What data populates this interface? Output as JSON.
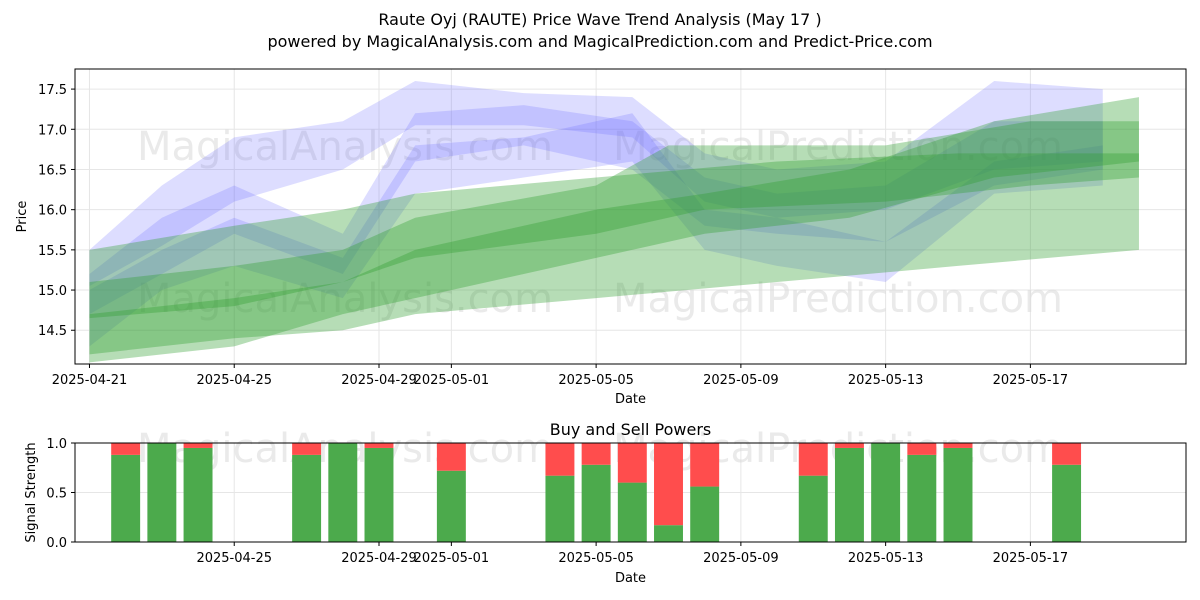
{
  "page": {
    "title_line1": "Raute Oyj (RAUTE) Price Wave Trend Analysis (May 17 )",
    "title_line2": "powered by MagicalAnalysis.com and MagicalPrediction.com and Predict-Price.com",
    "watermarks": [
      "MagicalAnalysis.com",
      "MagicalPrediction.com"
    ]
  },
  "colors": {
    "blue_band": "#6666ff",
    "green_band": "#2e9e2e",
    "buy": "#4caa4c",
    "sell": "#ff4d4d",
    "grid": "#e6e6e6"
  },
  "chart_data": [
    {
      "type": "area",
      "title": "",
      "xlabel": "Date",
      "ylabel": "Price",
      "x_ticks": [
        "2025-04-21",
        "2025-04-25",
        "2025-04-29",
        "2025-05-01",
        "2025-05-05",
        "2025-05-09",
        "2025-05-13",
        "2025-05-17"
      ],
      "y_ticks": [
        14.5,
        15.0,
        15.5,
        16.0,
        16.5,
        17.0,
        17.5
      ],
      "xlim": [
        "2025-04-20.6",
        "2025-05-21.3"
      ],
      "ylim": [
        14.08,
        17.75
      ],
      "grid": true,
      "series": [
        {
          "group": "blue",
          "lower": [
            [
              "2025-04-21",
              15.05
            ],
            [
              "2025-04-23",
              15.55
            ],
            [
              "2025-04-25",
              16.1
            ],
            [
              "2025-04-28",
              16.5
            ],
            [
              "2025-04-30",
              17.05
            ],
            [
              "2025-05-03",
              17.05
            ],
            [
              "2025-05-06",
              16.9
            ],
            [
              "2025-05-08",
              16.1
            ],
            [
              "2025-05-10",
              15.9
            ],
            [
              "2025-05-13",
              16.0
            ],
            [
              "2025-05-16",
              16.5
            ],
            [
              "2025-05-19",
              16.6
            ]
          ],
          "upper": [
            [
              "2025-04-21",
              15.5
            ],
            [
              "2025-04-23",
              16.3
            ],
            [
              "2025-04-25",
              16.9
            ],
            [
              "2025-04-28",
              17.1
            ],
            [
              "2025-04-30",
              17.6
            ],
            [
              "2025-05-03",
              17.45
            ],
            [
              "2025-05-06",
              17.4
            ],
            [
              "2025-05-08",
              16.7
            ],
            [
              "2025-05-10",
              16.5
            ],
            [
              "2025-05-13",
              16.6
            ],
            [
              "2025-05-16",
              17.6
            ],
            [
              "2025-05-19",
              17.5
            ]
          ]
        },
        {
          "group": "blue",
          "lower": [
            [
              "2025-04-21",
              14.7
            ],
            [
              "2025-04-23",
              15.2
            ],
            [
              "2025-04-25",
              15.7
            ],
            [
              "2025-04-28",
              15.2
            ],
            [
              "2025-04-30",
              16.6
            ],
            [
              "2025-05-03",
              16.8
            ],
            [
              "2025-05-06",
              16.5
            ],
            [
              "2025-05-08",
              15.8
            ],
            [
              "2025-05-10",
              15.7
            ],
            [
              "2025-05-13",
              15.6
            ],
            [
              "2025-05-16",
              16.3
            ],
            [
              "2025-05-19",
              16.5
            ]
          ],
          "upper": [
            [
              "2025-04-21",
              15.2
            ],
            [
              "2025-04-23",
              15.9
            ],
            [
              "2025-04-25",
              16.3
            ],
            [
              "2025-04-28",
              15.7
            ],
            [
              "2025-04-30",
              17.2
            ],
            [
              "2025-05-03",
              17.3
            ],
            [
              "2025-05-06",
              17.1
            ],
            [
              "2025-05-08",
              16.4
            ],
            [
              "2025-05-10",
              16.2
            ],
            [
              "2025-05-13",
              16.3
            ],
            [
              "2025-05-16",
              17.1
            ],
            [
              "2025-05-19",
              17.1
            ]
          ]
        },
        {
          "group": "blue",
          "lower": [
            [
              "2025-04-21",
              14.3
            ],
            [
              "2025-04-23",
              15.0
            ],
            [
              "2025-04-25",
              15.3
            ],
            [
              "2025-04-28",
              14.9
            ],
            [
              "2025-04-30",
              16.2
            ],
            [
              "2025-05-03",
              16.4
            ],
            [
              "2025-05-06",
              16.6
            ],
            [
              "2025-05-08",
              15.5
            ],
            [
              "2025-05-10",
              15.3
            ],
            [
              "2025-05-13",
              15.1
            ],
            [
              "2025-05-16",
              16.2
            ],
            [
              "2025-05-19",
              16.3
            ]
          ],
          "upper": [
            [
              "2025-04-21",
              15.0
            ],
            [
              "2025-04-23",
              15.5
            ],
            [
              "2025-04-25",
              15.9
            ],
            [
              "2025-04-28",
              15.4
            ],
            [
              "2025-04-30",
              16.8
            ],
            [
              "2025-05-03",
              16.9
            ],
            [
              "2025-05-06",
              17.2
            ],
            [
              "2025-05-08",
              16.0
            ],
            [
              "2025-05-10",
              15.9
            ],
            [
              "2025-05-13",
              15.6
            ],
            [
              "2025-05-16",
              16.6
            ],
            [
              "2025-05-19",
              16.8
            ]
          ]
        },
        {
          "group": "green",
          "lower": [
            [
              "2025-04-21",
              14.2
            ],
            [
              "2025-04-25",
              14.4
            ],
            [
              "2025-04-28",
              14.5
            ],
            [
              "2025-04-30",
              14.7
            ],
            [
              "2025-05-05",
              14.9
            ],
            [
              "2025-05-10",
              15.1
            ],
            [
              "2025-05-15",
              15.3
            ],
            [
              "2025-05-20",
              15.5
            ]
          ],
          "upper": [
            [
              "2025-04-21",
              15.5
            ],
            [
              "2025-04-25",
              15.8
            ],
            [
              "2025-04-28",
              16.0
            ],
            [
              "2025-04-30",
              16.2
            ],
            [
              "2025-05-05",
              16.4
            ],
            [
              "2025-05-10",
              16.6
            ],
            [
              "2025-05-15",
              16.7
            ],
            [
              "2025-05-20",
              16.7
            ]
          ]
        },
        {
          "group": "green",
          "lower": [
            [
              "2025-04-21",
              14.65
            ],
            [
              "2025-04-25",
              14.8
            ],
            [
              "2025-04-28",
              15.1
            ],
            [
              "2025-04-30",
              15.4
            ],
            [
              "2025-05-05",
              15.7
            ],
            [
              "2025-05-08",
              16.0
            ],
            [
              "2025-05-13",
              16.1
            ],
            [
              "2025-05-17",
              16.3
            ],
            [
              "2025-05-20",
              16.4
            ]
          ],
          "upper": [
            [
              "2025-04-21",
              15.1
            ],
            [
              "2025-04-25",
              15.3
            ],
            [
              "2025-04-28",
              15.5
            ],
            [
              "2025-04-30",
              15.9
            ],
            [
              "2025-05-05",
              16.3
            ],
            [
              "2025-05-07",
              16.8
            ],
            [
              "2025-05-13",
              16.8
            ],
            [
              "2025-05-17",
              17.1
            ],
            [
              "2025-05-20",
              17.1
            ]
          ]
        },
        {
          "group": "green",
          "lower": [
            [
              "2025-04-21",
              14.1
            ],
            [
              "2025-04-25",
              14.3
            ],
            [
              "2025-04-28",
              14.7
            ],
            [
              "2025-04-30",
              14.9
            ],
            [
              "2025-05-05",
              15.4
            ],
            [
              "2025-05-08",
              15.7
            ],
            [
              "2025-05-12",
              15.9
            ],
            [
              "2025-05-16",
              16.4
            ],
            [
              "2025-05-20",
              16.6
            ]
          ],
          "upper": [
            [
              "2025-04-21",
              14.7
            ],
            [
              "2025-04-25",
              14.9
            ],
            [
              "2025-04-28",
              15.1
            ],
            [
              "2025-04-30",
              15.5
            ],
            [
              "2025-05-05",
              16.0
            ],
            [
              "2025-05-08",
              16.2
            ],
            [
              "2025-05-12",
              16.5
            ],
            [
              "2025-05-16",
              17.1
            ],
            [
              "2025-05-20",
              17.4
            ]
          ]
        }
      ]
    },
    {
      "type": "bar",
      "title": "Buy and Sell Powers",
      "xlabel": "Date",
      "ylabel": "Signal Strength",
      "x_ticks": [
        "2025-04-25",
        "2025-04-29",
        "2025-05-01",
        "2025-05-05",
        "2025-05-09",
        "2025-05-13",
        "2025-05-17"
      ],
      "y_ticks": [
        0.0,
        0.5,
        1.0
      ],
      "ylim": [
        0,
        1
      ],
      "grid": true,
      "categories": [
        "2025-04-22",
        "2025-04-23",
        "2025-04-24",
        "2025-04-27",
        "2025-04-28",
        "2025-04-29",
        "2025-05-01",
        "2025-05-04",
        "2025-05-05",
        "2025-05-06",
        "2025-05-07",
        "2025-05-08",
        "2025-05-11",
        "2025-05-12",
        "2025-05-13",
        "2025-05-14",
        "2025-05-15",
        "2025-05-18"
      ],
      "series": [
        {
          "group": "buy",
          "values": [
            0.88,
            1.0,
            0.95,
            0.88,
            1.0,
            0.95,
            0.72,
            0.67,
            0.78,
            0.6,
            0.17,
            0.56,
            0.67,
            0.95,
            1.0,
            0.88,
            0.95,
            0.78
          ]
        },
        {
          "group": "sell",
          "values": [
            0.12,
            0.0,
            0.05,
            0.12,
            0.0,
            0.05,
            0.28,
            0.33,
            0.22,
            0.4,
            0.83,
            0.44,
            0.33,
            0.05,
            0.0,
            0.12,
            0.05,
            0.22
          ]
        }
      ]
    }
  ]
}
